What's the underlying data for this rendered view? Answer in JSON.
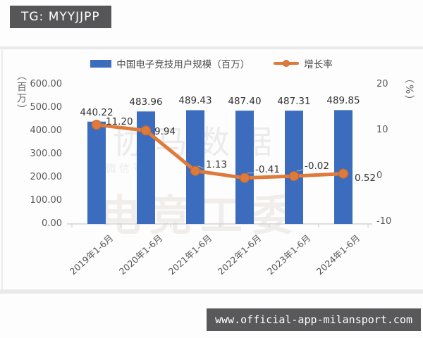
{
  "badges": {
    "tg": "TG: MYYJJPP",
    "url": "www.official-app-milansport.com"
  },
  "legend": {
    "bar_label": "中国电子竞技用户规模（百万）",
    "line_label": "增长率"
  },
  "watermarks": {
    "line1": "协马数据",
    "line2": "微信号",
    "line3": "电竞工委"
  },
  "colors": {
    "bar": "#3c6cbe",
    "line": "#de7a3b",
    "marker_edge": "#c96a2f",
    "axis": "#d4d4d4",
    "badge_bg": "#565659"
  },
  "chart_data": {
    "type": "bar",
    "subtype": "bar+line combo",
    "title": "",
    "categories": [
      "2019年1-6月",
      "2020年1-6月",
      "2021年1-6月",
      "2022年1-6月",
      "2023年1-6月",
      "2024年1-6月"
    ],
    "series": [
      {
        "name": "中国电子竞技用户规模（百万）",
        "type": "bar",
        "axis": "left",
        "color": "#3c6cbe",
        "values": [
          440.22,
          483.96,
          489.43,
          487.4,
          487.31,
          489.85
        ],
        "labels": [
          "440.22",
          "483.96",
          "489.43",
          "487.40",
          "487.31",
          "489.85"
        ]
      },
      {
        "name": "增长率",
        "type": "line",
        "axis": "right",
        "color": "#de7a3b",
        "values": [
          11.2,
          9.94,
          1.13,
          -0.41,
          -0.02,
          0.52
        ],
        "labels": [
          "11.20",
          "9.94",
          "1.13",
          "-0.41",
          "-0.02",
          "0.52"
        ]
      }
    ],
    "left_axis": {
      "unit": "（百万）",
      "min": 0,
      "max": 600,
      "ticks": [
        "600.00",
        "500.00",
        "400.00",
        "300.00",
        "200.00",
        "100.00",
        "0.00"
      ]
    },
    "right_axis": {
      "unit": "（%）",
      "min": -10,
      "max": 20,
      "ticks": [
        "20",
        "10",
        "0",
        "-10"
      ]
    },
    "legend_position": "top",
    "grid": false,
    "xlabel": "",
    "ylabel": "（百万）"
  }
}
